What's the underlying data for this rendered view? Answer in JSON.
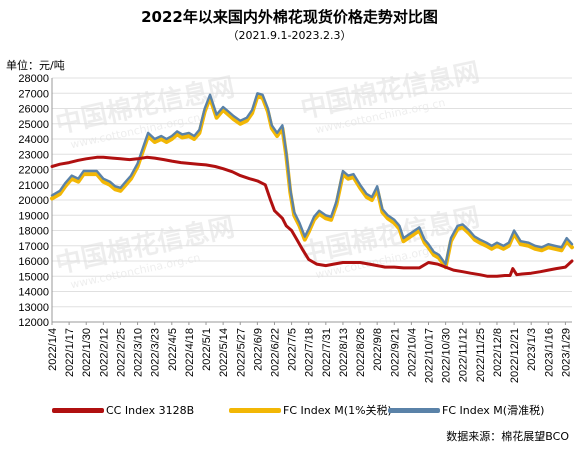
{
  "header": {
    "title": "2022年以来国内外棉花现货价格走势对比图",
    "subtitle": "（2021.9.1-2023.2.3）",
    "unit": "单位：元/吨"
  },
  "footer": {
    "source": "数据来源：棉花展望BCO"
  },
  "watermark": {
    "name": "中国棉花信息网",
    "url": "www.cottonchina.org.cn"
  },
  "colors": {
    "cc_index": "#b01010",
    "fc_index_1pct": "#f2b705",
    "fc_index_sliding": "#5a82a8",
    "grid": "#e0e0e0",
    "axis": "#999999"
  },
  "chart_data": {
    "type": "line",
    "title": "2022年以来国内外棉花现货价格走势对比图",
    "subtitle": "（2021.9.1-2023.2.3）",
    "ylabel": "单位：元/吨",
    "ylim": [
      12000,
      28000
    ],
    "yticks": [
      12000,
      13000,
      14000,
      15000,
      16000,
      17000,
      18000,
      19000,
      20000,
      21000,
      22000,
      23000,
      24000,
      25000,
      26000,
      27000,
      28000
    ],
    "x_tick_labels": [
      "2022/1/4",
      "2022/1/17",
      "2022/1/30",
      "2022/2/12",
      "2022/2/25",
      "2022/3/10",
      "2022/3/23",
      "2022/4/5",
      "2022/4/18",
      "2022/5/1",
      "2022/5/14",
      "2022/5/27",
      "2022/6/9",
      "2022/6/22",
      "2022/7/5",
      "2022/7/18",
      "2022/7/31",
      "2022/8/13",
      "2022/8/26",
      "2022/9/8",
      "2022/9/21",
      "2022/10/4",
      "2022/10/17",
      "2022/10/30",
      "2022/11/12",
      "2022/11/25",
      "2022/12/8",
      "2022/12/21",
      "2023/1/3",
      "2023/1/16",
      "2023/1/29"
    ],
    "x_range": [
      "2022/1/4",
      "2023/2/3"
    ],
    "grid": true,
    "legend_position": "bottom",
    "series": [
      {
        "name": "CC Index 3128B",
        "points": [
          [
            "2022/1/4",
            22200
          ],
          [
            "2022/1/10",
            22350
          ],
          [
            "2022/1/17",
            22450
          ],
          [
            "2022/1/24",
            22600
          ],
          [
            "2022/1/30",
            22700
          ],
          [
            "2022/2/7",
            22800
          ],
          [
            "2022/2/12",
            22800
          ],
          [
            "2022/2/19",
            22750
          ],
          [
            "2022/2/25",
            22700
          ],
          [
            "2022/3/4",
            22650
          ],
          [
            "2022/3/10",
            22700
          ],
          [
            "2022/3/17",
            22800
          ],
          [
            "2022/3/23",
            22750
          ],
          [
            "2022/3/30",
            22650
          ],
          [
            "2022/4/5",
            22550
          ],
          [
            "2022/4/12",
            22450
          ],
          [
            "2022/4/18",
            22400
          ],
          [
            "2022/4/25",
            22350
          ],
          [
            "2022/5/1",
            22300
          ],
          [
            "2022/5/8",
            22200
          ],
          [
            "2022/5/14",
            22050
          ],
          [
            "2022/5/21",
            21850
          ],
          [
            "2022/5/27",
            21600
          ],
          [
            "2022/6/3",
            21400
          ],
          [
            "2022/6/9",
            21250
          ],
          [
            "2022/6/15",
            21000
          ],
          [
            "2022/6/19",
            20000
          ],
          [
            "2022/6/22",
            19300
          ],
          [
            "2022/6/28",
            18800
          ],
          [
            "2022/7/1",
            18300
          ],
          [
            "2022/7/5",
            18000
          ],
          [
            "2022/7/9",
            17400
          ],
          [
            "2022/7/13",
            16800
          ],
          [
            "2022/7/18",
            16100
          ],
          [
            "2022/7/24",
            15800
          ],
          [
            "2022/7/31",
            15700
          ],
          [
            "2022/8/6",
            15800
          ],
          [
            "2022/8/13",
            15900
          ],
          [
            "2022/8/19",
            15900
          ],
          [
            "2022/8/26",
            15900
          ],
          [
            "2022/9/2",
            15800
          ],
          [
            "2022/9/8",
            15700
          ],
          [
            "2022/9/14",
            15600
          ],
          [
            "2022/9/21",
            15600
          ],
          [
            "2022/9/28",
            15550
          ],
          [
            "2022/10/4",
            15550
          ],
          [
            "2022/10/10",
            15550
          ],
          [
            "2022/10/17",
            15900
          ],
          [
            "2022/10/24",
            15800
          ],
          [
            "2022/10/30",
            15600
          ],
          [
            "2022/11/5",
            15400
          ],
          [
            "2022/11/12",
            15300
          ],
          [
            "2022/11/18",
            15200
          ],
          [
            "2022/11/25",
            15100
          ],
          [
            "2022/12/1",
            15000
          ],
          [
            "2022/12/8",
            15000
          ],
          [
            "2022/12/14",
            15050
          ],
          [
            "2022/12/18",
            15050
          ],
          [
            "2022/12/20",
            15500
          ],
          [
            "2022/12/23",
            15100
          ],
          [
            "2022/12/27",
            15150
          ],
          [
            "2023/1/3",
            15200
          ],
          [
            "2023/1/10",
            15300
          ],
          [
            "2023/1/16",
            15400
          ],
          [
            "2023/1/22",
            15500
          ],
          [
            "2023/1/29",
            15600
          ],
          [
            "2023/2/3",
            16000
          ]
        ]
      },
      {
        "name": "FC Index M(1%关税)",
        "points": [
          [
            "2022/1/4",
            20100
          ],
          [
            "2022/1/10",
            20400
          ],
          [
            "2022/1/14",
            20900
          ],
          [
            "2022/1/19",
            21400
          ],
          [
            "2022/1/24",
            21200
          ],
          [
            "2022/1/28",
            21700
          ],
          [
            "2022/2/7",
            21700
          ],
          [
            "2022/2/12",
            21200
          ],
          [
            "2022/2/17",
            21000
          ],
          [
            "2022/2/21",
            20700
          ],
          [
            "2022/2/25",
            20600
          ],
          [
            "2022/3/1",
            21000
          ],
          [
            "2022/3/5",
            21400
          ],
          [
            "2022/3/10",
            22200
          ],
          [
            "2022/3/14",
            23200
          ],
          [
            "2022/3/18",
            24200
          ],
          [
            "2022/3/23",
            23800
          ],
          [
            "2022/3/28",
            24000
          ],
          [
            "2022/4/1",
            23800
          ],
          [
            "2022/4/5",
            24000
          ],
          [
            "2022/4/9",
            24300
          ],
          [
            "2022/4/13",
            24100
          ],
          [
            "2022/4/18",
            24200
          ],
          [
            "2022/4/22",
            24000
          ],
          [
            "2022/4/26",
            24400
          ],
          [
            "2022/4/30",
            25800
          ],
          [
            "2022/5/4",
            26700
          ],
          [
            "2022/5/9",
            25400
          ],
          [
            "2022/5/14",
            25900
          ],
          [
            "2022/5/18",
            25600
          ],
          [
            "2022/5/22",
            25300
          ],
          [
            "2022/5/27",
            25000
          ],
          [
            "2022/6/1",
            25200
          ],
          [
            "2022/6/5",
            25700
          ],
          [
            "2022/6/9",
            26800
          ],
          [
            "2022/6/13",
            26700
          ],
          [
            "2022/6/17",
            25800
          ],
          [
            "2022/6/20",
            24700
          ],
          [
            "2022/6/24",
            24200
          ],
          [
            "2022/6/28",
            24700
          ],
          [
            "2022/7/1",
            22900
          ],
          [
            "2022/7/4",
            20500
          ],
          [
            "2022/7/7",
            19000
          ],
          [
            "2022/7/11",
            18300
          ],
          [
            "2022/7/15",
            17400
          ],
          [
            "2022/7/18",
            17900
          ],
          [
            "2022/7/22",
            18700
          ],
          [
            "2022/7/26",
            19100
          ],
          [
            "2022/7/31",
            18800
          ],
          [
            "2022/8/4",
            18700
          ],
          [
            "2022/8/8",
            19700
          ],
          [
            "2022/8/13",
            21700
          ],
          [
            "2022/8/17",
            21400
          ],
          [
            "2022/8/21",
            21500
          ],
          [
            "2022/8/26",
            20800
          ],
          [
            "2022/8/31",
            20200
          ],
          [
            "2022/9/4",
            20000
          ],
          [
            "2022/9/8",
            20700
          ],
          [
            "2022/9/12",
            19200
          ],
          [
            "2022/9/16",
            18800
          ],
          [
            "2022/9/21",
            18500
          ],
          [
            "2022/9/25",
            18100
          ],
          [
            "2022/9/28",
            17300
          ],
          [
            "2022/10/10",
            18000
          ],
          [
            "2022/10/14",
            17200
          ],
          [
            "2022/10/17",
            16900
          ],
          [
            "2022/10/21",
            16400
          ],
          [
            "2022/10/25",
            16200
          ],
          [
            "2022/10/30",
            15600
          ],
          [
            "2022/11/3",
            17300
          ],
          [
            "2022/11/8",
            18100
          ],
          [
            "2022/11/12",
            18200
          ],
          [
            "2022/11/17",
            17800
          ],
          [
            "2022/11/21",
            17400
          ],
          [
            "2022/11/25",
            17200
          ],
          [
            "2022/11/30",
            17000
          ],
          [
            "2022/12/4",
            16800
          ],
          [
            "2022/12/8",
            17000
          ],
          [
            "2022/12/13",
            16800
          ],
          [
            "2022/12/17",
            17000
          ],
          [
            "2022/12/21",
            17800
          ],
          [
            "2022/12/26",
            17100
          ],
          [
            "2023/1/1",
            17000
          ],
          [
            "2023/1/6",
            16800
          ],
          [
            "2023/1/11",
            16700
          ],
          [
            "2023/1/16",
            16900
          ],
          [
            "2023/1/21",
            16800
          ],
          [
            "2023/1/26",
            16700
          ],
          [
            "2023/1/30",
            17300
          ],
          [
            "2023/2/3",
            16900
          ]
        ]
      },
      {
        "name": "FC Index M(滑准税)",
        "points": [
          [
            "2022/1/4",
            20300
          ],
          [
            "2022/1/10",
            20600
          ],
          [
            "2022/1/14",
            21100
          ],
          [
            "2022/1/19",
            21600
          ],
          [
            "2022/1/24",
            21400
          ],
          [
            "2022/1/28",
            21900
          ],
          [
            "2022/2/7",
            21900
          ],
          [
            "2022/2/12",
            21400
          ],
          [
            "2022/2/17",
            21200
          ],
          [
            "2022/2/21",
            20900
          ],
          [
            "2022/2/25",
            20800
          ],
          [
            "2022/3/1",
            21200
          ],
          [
            "2022/3/5",
            21600
          ],
          [
            "2022/3/10",
            22400
          ],
          [
            "2022/3/14",
            23400
          ],
          [
            "2022/3/18",
            24400
          ],
          [
            "2022/3/23",
            24000
          ],
          [
            "2022/3/28",
            24200
          ],
          [
            "2022/4/1",
            24000
          ],
          [
            "2022/4/5",
            24200
          ],
          [
            "2022/4/9",
            24500
          ],
          [
            "2022/4/13",
            24300
          ],
          [
            "2022/4/18",
            24400
          ],
          [
            "2022/4/22",
            24200
          ],
          [
            "2022/4/26",
            24600
          ],
          [
            "2022/4/30",
            26000
          ],
          [
            "2022/5/4",
            26900
          ],
          [
            "2022/5/9",
            25600
          ],
          [
            "2022/5/14",
            26100
          ],
          [
            "2022/5/18",
            25800
          ],
          [
            "2022/5/22",
            25500
          ],
          [
            "2022/5/27",
            25200
          ],
          [
            "2022/6/1",
            25400
          ],
          [
            "2022/6/5",
            25900
          ],
          [
            "2022/6/9",
            27000
          ],
          [
            "2022/6/13",
            26900
          ],
          [
            "2022/6/17",
            26000
          ],
          [
            "2022/6/20",
            24900
          ],
          [
            "2022/6/24",
            24400
          ],
          [
            "2022/6/28",
            24900
          ],
          [
            "2022/7/1",
            23100
          ],
          [
            "2022/7/4",
            20700
          ],
          [
            "2022/7/7",
            19200
          ],
          [
            "2022/7/11",
            18500
          ],
          [
            "2022/7/15",
            17600
          ],
          [
            "2022/7/18",
            18100
          ],
          [
            "2022/7/22",
            18900
          ],
          [
            "2022/7/26",
            19300
          ],
          [
            "2022/7/31",
            19000
          ],
          [
            "2022/8/4",
            18900
          ],
          [
            "2022/8/8",
            19900
          ],
          [
            "2022/8/13",
            21900
          ],
          [
            "2022/8/17",
            21600
          ],
          [
            "2022/8/21",
            21700
          ],
          [
            "2022/8/26",
            21000
          ],
          [
            "2022/8/31",
            20400
          ],
          [
            "2022/9/4",
            20200
          ],
          [
            "2022/9/8",
            20900
          ],
          [
            "2022/9/12",
            19400
          ],
          [
            "2022/9/16",
            19000
          ],
          [
            "2022/9/21",
            18700
          ],
          [
            "2022/9/25",
            18300
          ],
          [
            "2022/9/28",
            17500
          ],
          [
            "2022/10/10",
            18200
          ],
          [
            "2022/10/14",
            17400
          ],
          [
            "2022/10/17",
            17100
          ],
          [
            "2022/10/21",
            16600
          ],
          [
            "2022/10/25",
            16400
          ],
          [
            "2022/10/30",
            15800
          ],
          [
            "2022/11/3",
            17500
          ],
          [
            "2022/11/8",
            18300
          ],
          [
            "2022/11/12",
            18400
          ],
          [
            "2022/11/17",
            18000
          ],
          [
            "2022/11/21",
            17600
          ],
          [
            "2022/11/25",
            17400
          ],
          [
            "2022/11/30",
            17200
          ],
          [
            "2022/12/4",
            17000
          ],
          [
            "2022/12/8",
            17200
          ],
          [
            "2022/12/13",
            17000
          ],
          [
            "2022/12/17",
            17200
          ],
          [
            "2022/12/21",
            18000
          ],
          [
            "2022/12/26",
            17300
          ],
          [
            "2023/1/1",
            17200
          ],
          [
            "2023/1/6",
            17000
          ],
          [
            "2023/1/11",
            16900
          ],
          [
            "2023/1/16",
            17100
          ],
          [
            "2023/1/21",
            17000
          ],
          [
            "2023/1/26",
            16900
          ],
          [
            "2023/1/30",
            17500
          ],
          [
            "2023/2/3",
            17100
          ]
        ]
      }
    ]
  }
}
